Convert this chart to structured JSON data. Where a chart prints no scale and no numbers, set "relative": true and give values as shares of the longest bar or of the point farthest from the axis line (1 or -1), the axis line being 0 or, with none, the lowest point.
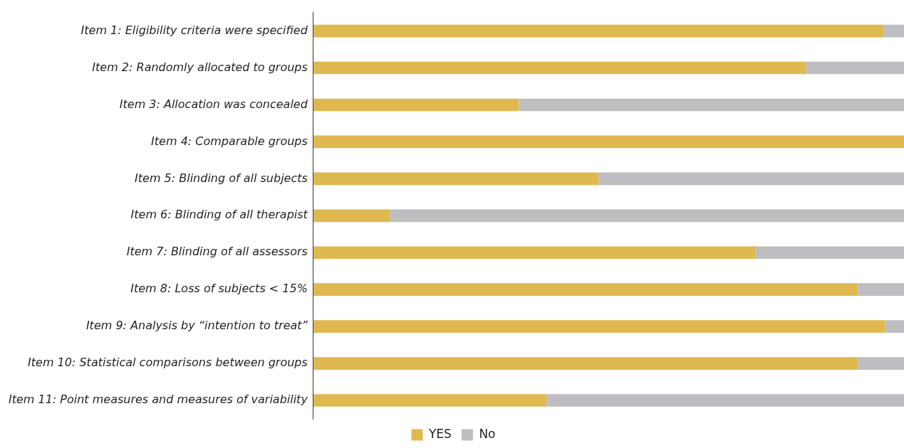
{
  "chart_data": {
    "type": "bar",
    "orientation": "horizontal",
    "stacked": true,
    "relative": true,
    "legend": "bottom",
    "categories": [
      "Item 1: Eligibility criteria were specified",
      "Item 2: Randomly allocated to groups",
      "Item 3: Allocation was concealed",
      "Item 4: Comparable groups",
      "Item 5: Blinding of all subjects",
      "Item 6: Blinding of all therapist",
      "Item 7: Blinding of all assessors",
      "Item 8: Loss of subjects < 15%",
      "Item 9: Analysis by “intention to treat”",
      "Item 10: Statistical comparisons between groups",
      "Item 11: Point measures and measures of variability"
    ],
    "series": [
      {
        "name": "YES",
        "color": "#e0b850",
        "values": [
          0.966,
          0.834,
          0.348,
          1.0,
          0.483,
          0.13,
          0.748,
          0.922,
          0.968,
          0.922,
          0.395
        ]
      },
      {
        "name": "No",
        "color": "#bdbec2",
        "values": [
          0.034,
          0.166,
          0.652,
          0.0,
          0.517,
          0.87,
          0.252,
          0.078,
          0.032,
          0.078,
          0.605
        ]
      }
    ]
  }
}
